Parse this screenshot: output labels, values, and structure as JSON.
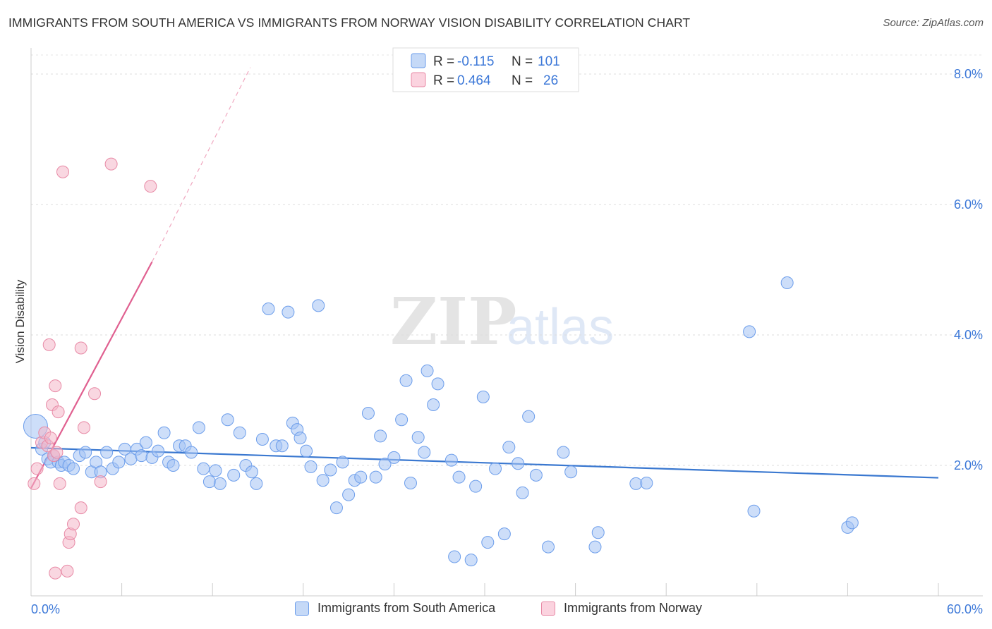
{
  "title": "IMMIGRANTS FROM SOUTH AMERICA VS IMMIGRANTS FROM NORWAY VISION DISABILITY CORRELATION CHART",
  "source": "Source: ZipAtlas.com",
  "watermark": {
    "zip": "ZIP",
    "atlas": "atlas"
  },
  "legend_top": [
    {
      "r_label": "R =",
      "r_value": "-0.115",
      "n_label": "N =",
      "n_value": "101",
      "color": "#a4c2f4"
    },
    {
      "r_label": "R =",
      "r_value": "0.464",
      "n_label": "N =",
      "n_value": "26",
      "color": "#f4b6c8"
    }
  ],
  "legend_bottom": [
    {
      "label": "Immigrants from South America",
      "color": "#a4c2f4"
    },
    {
      "label": "Immigrants from Norway",
      "color": "#f4b6c8"
    }
  ],
  "chart_data": {
    "type": "scatter",
    "title": "IMMIGRANTS FROM SOUTH AMERICA VS IMMIGRANTS FROM NORWAY VISION DISABILITY CORRELATION CHART",
    "xlabel": "",
    "ylabel": "Vision Disability",
    "xlim": [
      0,
      60
    ],
    "ylim": [
      0,
      8.4
    ],
    "x_tick_labels": [
      "0.0%",
      "60.0%"
    ],
    "y_ticks": [
      2,
      4,
      6,
      8
    ],
    "y_tick_labels": [
      "2.0%",
      "4.0%",
      "6.0%",
      "8.0%"
    ],
    "grid": true,
    "legend_position": "top-center",
    "series": [
      {
        "name": "Immigrants from South America",
        "color": "#a4c2f4",
        "stroke": "#6d9eeb",
        "trend": {
          "x": [
            0,
            60
          ],
          "y": [
            2.27,
            1.81
          ],
          "color": "#3a78d0"
        },
        "points": [
          {
            "x": 0.3,
            "y": 2.6,
            "big": true
          },
          {
            "x": 0.7,
            "y": 2.25
          },
          {
            "x": 0.9,
            "y": 2.35
          },
          {
            "x": 1.1,
            "y": 2.1
          },
          {
            "x": 1.3,
            "y": 2.05
          },
          {
            "x": 1.5,
            "y": 2.15
          },
          {
            "x": 1.8,
            "y": 2.05
          },
          {
            "x": 2.0,
            "y": 2.0
          },
          {
            "x": 2.2,
            "y": 2.05
          },
          {
            "x": 2.5,
            "y": 2.0
          },
          {
            "x": 2.8,
            "y": 1.95
          },
          {
            "x": 3.2,
            "y": 2.15
          },
          {
            "x": 3.6,
            "y": 2.2
          },
          {
            "x": 4.0,
            "y": 1.9
          },
          {
            "x": 4.3,
            "y": 2.05
          },
          {
            "x": 4.6,
            "y": 1.9
          },
          {
            "x": 5.0,
            "y": 2.2
          },
          {
            "x": 5.4,
            "y": 1.95
          },
          {
            "x": 5.8,
            "y": 2.05
          },
          {
            "x": 6.2,
            "y": 2.25
          },
          {
            "x": 6.6,
            "y": 2.1
          },
          {
            "x": 7.0,
            "y": 2.25
          },
          {
            "x": 7.3,
            "y": 2.15
          },
          {
            "x": 7.6,
            "y": 2.35
          },
          {
            "x": 8.0,
            "y": 2.12
          },
          {
            "x": 8.4,
            "y": 2.22
          },
          {
            "x": 8.8,
            "y": 2.5
          },
          {
            "x": 9.1,
            "y": 2.05
          },
          {
            "x": 9.4,
            "y": 2.0
          },
          {
            "x": 9.8,
            "y": 2.3
          },
          {
            "x": 10.2,
            "y": 2.3
          },
          {
            "x": 10.6,
            "y": 2.2
          },
          {
            "x": 11.1,
            "y": 2.58
          },
          {
            "x": 11.4,
            "y": 1.95
          },
          {
            "x": 11.8,
            "y": 1.75
          },
          {
            "x": 12.2,
            "y": 1.92
          },
          {
            "x": 12.5,
            "y": 1.72
          },
          {
            "x": 13.0,
            "y": 2.7
          },
          {
            "x": 13.4,
            "y": 1.85
          },
          {
            "x": 13.8,
            "y": 2.5
          },
          {
            "x": 14.2,
            "y": 2.0
          },
          {
            "x": 14.6,
            "y": 1.9
          },
          {
            "x": 14.9,
            "y": 1.72
          },
          {
            "x": 15.3,
            "y": 2.4
          },
          {
            "x": 15.7,
            "y": 4.4
          },
          {
            "x": 16.2,
            "y": 2.3
          },
          {
            "x": 16.6,
            "y": 2.3
          },
          {
            "x": 17.0,
            "y": 4.35
          },
          {
            "x": 17.3,
            "y": 2.65
          },
          {
            "x": 17.6,
            "y": 2.55
          },
          {
            "x": 17.8,
            "y": 2.42
          },
          {
            "x": 18.2,
            "y": 2.22
          },
          {
            "x": 18.5,
            "y": 1.98
          },
          {
            "x": 19.0,
            "y": 4.45
          },
          {
            "x": 19.3,
            "y": 1.77
          },
          {
            "x": 19.8,
            "y": 1.93
          },
          {
            "x": 20.2,
            "y": 1.35
          },
          {
            "x": 20.6,
            "y": 2.05
          },
          {
            "x": 21.0,
            "y": 1.55
          },
          {
            "x": 21.4,
            "y": 1.77
          },
          {
            "x": 21.8,
            "y": 1.82
          },
          {
            "x": 22.3,
            "y": 2.8
          },
          {
            "x": 22.8,
            "y": 1.82
          },
          {
            "x": 23.1,
            "y": 2.45
          },
          {
            "x": 23.4,
            "y": 2.02
          },
          {
            "x": 24.0,
            "y": 2.12
          },
          {
            "x": 24.5,
            "y": 2.7
          },
          {
            "x": 24.8,
            "y": 3.3
          },
          {
            "x": 25.1,
            "y": 1.73
          },
          {
            "x": 25.6,
            "y": 2.43
          },
          {
            "x": 26.0,
            "y": 2.2
          },
          {
            "x": 26.2,
            "y": 3.45
          },
          {
            "x": 26.6,
            "y": 2.93
          },
          {
            "x": 26.9,
            "y": 3.25
          },
          {
            "x": 27.8,
            "y": 2.08
          },
          {
            "x": 28.0,
            "y": 0.6
          },
          {
            "x": 28.3,
            "y": 1.82
          },
          {
            "x": 29.1,
            "y": 0.55
          },
          {
            "x": 29.4,
            "y": 1.68
          },
          {
            "x": 29.9,
            "y": 3.05
          },
          {
            "x": 30.2,
            "y": 0.82
          },
          {
            "x": 30.7,
            "y": 1.95
          },
          {
            "x": 31.3,
            "y": 0.95
          },
          {
            "x": 31.6,
            "y": 2.28
          },
          {
            "x": 32.2,
            "y": 2.03
          },
          {
            "x": 32.5,
            "y": 1.58
          },
          {
            "x": 32.9,
            "y": 2.75
          },
          {
            "x": 33.4,
            "y": 1.85
          },
          {
            "x": 34.2,
            "y": 0.75
          },
          {
            "x": 35.2,
            "y": 2.2
          },
          {
            "x": 35.7,
            "y": 1.9
          },
          {
            "x": 37.3,
            "y": 0.75
          },
          {
            "x": 37.5,
            "y": 0.97
          },
          {
            "x": 40.0,
            "y": 1.72
          },
          {
            "x": 40.7,
            "y": 1.73
          },
          {
            "x": 50.0,
            "y": 4.8
          },
          {
            "x": 47.8,
            "y": 1.3
          },
          {
            "x": 47.5,
            "y": 4.05
          },
          {
            "x": 54.0,
            "y": 1.05
          },
          {
            "x": 54.3,
            "y": 1.12
          }
        ]
      },
      {
        "name": "Immigrants from Norway",
        "color": "#f4b6c8",
        "stroke": "#e88aa6",
        "trend": {
          "x": [
            0,
            8.0
          ],
          "y": [
            1.65,
            5.12
          ],
          "dash_to": {
            "x": 14.5,
            "y": 8.1
          },
          "color": "#e06090"
        },
        "points": [
          {
            "x": 0.2,
            "y": 1.72
          },
          {
            "x": 0.4,
            "y": 1.95
          },
          {
            "x": 0.7,
            "y": 2.35
          },
          {
            "x": 0.9,
            "y": 2.5
          },
          {
            "x": 1.1,
            "y": 2.3
          },
          {
            "x": 1.3,
            "y": 2.42
          },
          {
            "x": 1.5,
            "y": 2.15
          },
          {
            "x": 1.2,
            "y": 3.85
          },
          {
            "x": 1.4,
            "y": 2.93
          },
          {
            "x": 1.6,
            "y": 0.35
          },
          {
            "x": 1.6,
            "y": 3.22
          },
          {
            "x": 1.7,
            "y": 2.2
          },
          {
            "x": 1.8,
            "y": 2.82
          },
          {
            "x": 1.9,
            "y": 1.72
          },
          {
            "x": 2.1,
            "y": 6.5
          },
          {
            "x": 2.4,
            "y": 0.38
          },
          {
            "x": 2.5,
            "y": 0.82
          },
          {
            "x": 2.6,
            "y": 0.95
          },
          {
            "x": 2.8,
            "y": 1.1
          },
          {
            "x": 3.3,
            "y": 1.35
          },
          {
            "x": 3.3,
            "y": 3.8
          },
          {
            "x": 3.5,
            "y": 2.58
          },
          {
            "x": 4.2,
            "y": 3.1
          },
          {
            "x": 4.6,
            "y": 1.75
          },
          {
            "x": 5.3,
            "y": 6.62
          },
          {
            "x": 7.9,
            "y": 6.28
          }
        ]
      }
    ]
  }
}
